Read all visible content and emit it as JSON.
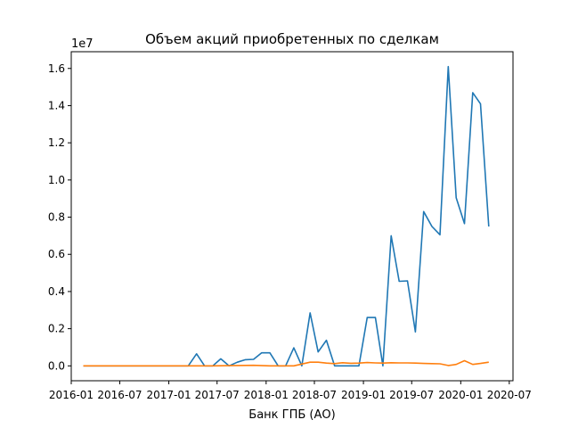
{
  "chart_data": {
    "type": "line",
    "title": "Объем акций приобретенных по сделкам",
    "xlabel": "Банк ГПБ (АО)",
    "ylabel": "",
    "y_multiplier_label": "1e7",
    "y_scale": 10000000,
    "xlim": [
      "2016-01-01",
      "2020-07-15"
    ],
    "ylim": [
      -0.08,
      1.69
    ],
    "x_ticks": [
      {
        "date": "2016-01-01",
        "label": "2016-01"
      },
      {
        "date": "2016-07-01",
        "label": "2016-07"
      },
      {
        "date": "2017-01-01",
        "label": "2017-01"
      },
      {
        "date": "2017-07-01",
        "label": "2017-07"
      },
      {
        "date": "2018-01-01",
        "label": "2018-01"
      },
      {
        "date": "2018-07-01",
        "label": "2018-07"
      },
      {
        "date": "2019-01-01",
        "label": "2019-01"
      },
      {
        "date": "2019-07-01",
        "label": "2019-07"
      },
      {
        "date": "2020-01-01",
        "label": "2020-01"
      },
      {
        "date": "2020-07-01",
        "label": "2020-07"
      }
    ],
    "y_ticks": [
      {
        "value": 0.0,
        "label": "0.0"
      },
      {
        "value": 0.2,
        "label": "0.2"
      },
      {
        "value": 0.4,
        "label": "0.4"
      },
      {
        "value": 0.6,
        "label": "0.6"
      },
      {
        "value": 0.8,
        "label": "0.8"
      },
      {
        "value": 1.0,
        "label": "1.0"
      },
      {
        "value": 1.2,
        "label": "1.2"
      },
      {
        "value": 1.4,
        "label": "1.4"
      },
      {
        "value": 1.6,
        "label": "1.6"
      }
    ],
    "grid": false,
    "series": [
      {
        "color": "#1f77b4",
        "points": [
          [
            "2016-02-15",
            0.0
          ],
          [
            "2016-12-25",
            0.0
          ],
          [
            "2017-02-01",
            0.0
          ],
          [
            "2017-03-15",
            0.0
          ],
          [
            "2017-04-15",
            0.065
          ],
          [
            "2017-05-15",
            0.0
          ],
          [
            "2017-06-15",
            0.0
          ],
          [
            "2017-07-15",
            0.038
          ],
          [
            "2017-08-15",
            0.0
          ],
          [
            "2017-09-15",
            0.02
          ],
          [
            "2017-10-15",
            0.033
          ],
          [
            "2017-11-15",
            0.035
          ],
          [
            "2017-12-15",
            0.07
          ],
          [
            "2018-01-15",
            0.07
          ],
          [
            "2018-02-15",
            0.0
          ],
          [
            "2018-03-15",
            0.0
          ],
          [
            "2018-04-15",
            0.097
          ],
          [
            "2018-05-15",
            0.0
          ],
          [
            "2018-06-15",
            0.285
          ],
          [
            "2018-07-15",
            0.075
          ],
          [
            "2018-08-15",
            0.138
          ],
          [
            "2018-09-15",
            0.0
          ],
          [
            "2018-10-15",
            0.0
          ],
          [
            "2018-11-15",
            0.0
          ],
          [
            "2018-12-15",
            0.0
          ],
          [
            "2019-01-15",
            0.26
          ],
          [
            "2019-02-15",
            0.26
          ],
          [
            "2019-03-15",
            0.0
          ],
          [
            "2019-04-15",
            0.7
          ],
          [
            "2019-05-15",
            0.455
          ],
          [
            "2019-06-15",
            0.457
          ],
          [
            "2019-07-15",
            0.183
          ],
          [
            "2019-08-15",
            0.83
          ],
          [
            "2019-09-15",
            0.75
          ],
          [
            "2019-10-15",
            0.705
          ],
          [
            "2019-11-15",
            1.61
          ],
          [
            "2019-12-15",
            0.905
          ],
          [
            "2020-01-15",
            0.765
          ],
          [
            "2020-02-15",
            1.47
          ],
          [
            "2020-03-15",
            1.41
          ],
          [
            "2020-04-15",
            0.75
          ]
        ]
      },
      {
        "color": "#ff7f0e",
        "points": [
          [
            "2016-02-15",
            0.0
          ],
          [
            "2017-06-15",
            0.0
          ],
          [
            "2017-09-15",
            0.002
          ],
          [
            "2017-11-15",
            0.003
          ],
          [
            "2018-01-15",
            0.0
          ],
          [
            "2018-04-15",
            0.0
          ],
          [
            "2018-06-15",
            0.02
          ],
          [
            "2018-07-15",
            0.02
          ],
          [
            "2018-08-15",
            0.015
          ],
          [
            "2018-09-15",
            0.012
          ],
          [
            "2018-10-15",
            0.017
          ],
          [
            "2018-11-15",
            0.014
          ],
          [
            "2018-12-15",
            0.015
          ],
          [
            "2019-01-15",
            0.018
          ],
          [
            "2019-02-15",
            0.016
          ],
          [
            "2019-03-15",
            0.015
          ],
          [
            "2019-04-15",
            0.017
          ],
          [
            "2019-05-15",
            0.016
          ],
          [
            "2019-06-15",
            0.016
          ],
          [
            "2019-07-15",
            0.015
          ],
          [
            "2019-08-15",
            0.013
          ],
          [
            "2019-09-15",
            0.012
          ],
          [
            "2019-10-15",
            0.011
          ],
          [
            "2019-11-15",
            0.002
          ],
          [
            "2019-12-15",
            0.008
          ],
          [
            "2020-01-15",
            0.028
          ],
          [
            "2020-02-15",
            0.008
          ],
          [
            "2020-03-15",
            0.013
          ],
          [
            "2020-04-15",
            0.02
          ]
        ]
      }
    ]
  }
}
